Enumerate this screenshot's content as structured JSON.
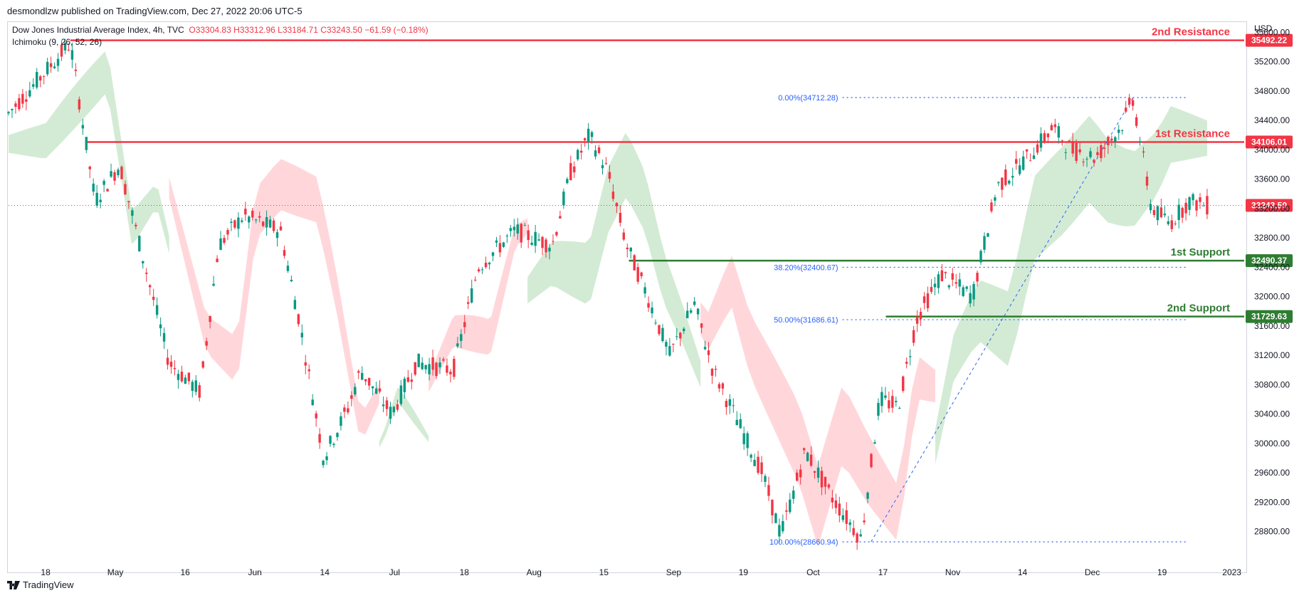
{
  "header": {
    "publisher": "desmondlzw published on TradingView.com, Dec 27, 2022 20:06 UTC-5",
    "symbol": "Dow Jones Industrial Average Index, 4h, TVC",
    "ohlc": "O33304.83  H33312.96  L33184.71  C33243.50  −61.59 (−0.18%)",
    "indicator": "Ichimoku (9, 26, 52, 26)"
  },
  "footer": {
    "brand": "TradingView"
  },
  "colors": {
    "up": "#089981",
    "down": "#f23645",
    "resistance": "#f23645",
    "support": "#2e7d32",
    "fib": "#2962ff",
    "cloud_green": "#c8e6c9",
    "cloud_red": "#ffcdd2"
  },
  "chart_data": {
    "type": "candlestick",
    "currency": "USD",
    "ylim": [
      28400,
      35750
    ],
    "y_ticks": [
      28800,
      29200,
      29600,
      30000,
      30400,
      30800,
      31200,
      31600,
      32000,
      32400,
      32800,
      33200,
      33600,
      34000,
      34400,
      34800,
      35200,
      35600
    ],
    "x_ticks": [
      "18",
      "May",
      "16",
      "Jun",
      "14",
      "Jul",
      "18",
      "Aug",
      "15",
      "Sep",
      "19",
      "Oct",
      "17",
      "Nov",
      "14",
      "Dec",
      "19",
      "2023"
    ],
    "last_price": 33243.5,
    "levels": [
      {
        "name": "2nd Resistance",
        "value": 35492.22,
        "label": "35492.22",
        "kind": "resistance",
        "from": 0.05
      },
      {
        "name": "1st Resistance",
        "value": 34106.01,
        "label": "34106.01",
        "kind": "resistance",
        "from": 0.062
      },
      {
        "name": "1st Support",
        "value": 32490.37,
        "label": "32490.37",
        "kind": "support",
        "from": 0.502
      },
      {
        "name": "2nd Support",
        "value": 31729.63,
        "label": "31729.63",
        "kind": "support",
        "from": 0.71
      }
    ],
    "last_price_label": "33243.50",
    "fibonacci": [
      {
        "label": "0.00%(34712.28)",
        "value": 34712.28
      },
      {
        "label": "38.20%(32400.67)",
        "value": 32400.67
      },
      {
        "label": "50.00%(31686.61)",
        "value": 31686.61
      },
      {
        "label": "100.00%(28660.94)",
        "value": 28660.94
      }
    ],
    "fib_anchor_low": {
      "t": 0.698,
      "value": 28660.94
    },
    "fib_anchor_high": {
      "t": 0.91,
      "value": 34712.28
    },
    "path": [
      [
        0.0,
        34500
      ],
      [
        0.05,
        35450
      ],
      [
        0.07,
        33300
      ],
      [
        0.09,
        33800
      ],
      [
        0.13,
        31100
      ],
      [
        0.155,
        30700
      ],
      [
        0.17,
        32700
      ],
      [
        0.19,
        33100
      ],
      [
        0.22,
        32900
      ],
      [
        0.235,
        31700
      ],
      [
        0.255,
        29800
      ],
      [
        0.275,
        30500
      ],
      [
        0.285,
        31000
      ],
      [
        0.31,
        30400
      ],
      [
        0.33,
        31100
      ],
      [
        0.36,
        31000
      ],
      [
        0.38,
        32400
      ],
      [
        0.41,
        32900
      ],
      [
        0.44,
        32700
      ],
      [
        0.455,
        33700
      ],
      [
        0.47,
        34200
      ],
      [
        0.485,
        33700
      ],
      [
        0.5,
        32700
      ],
      [
        0.515,
        32100
      ],
      [
        0.535,
        31200
      ],
      [
        0.555,
        31900
      ],
      [
        0.57,
        31000
      ],
      [
        0.59,
        30300
      ],
      [
        0.61,
        29600
      ],
      [
        0.625,
        28750
      ],
      [
        0.645,
        29900
      ],
      [
        0.665,
        29300
      ],
      [
        0.69,
        28700
      ],
      [
        0.705,
        30600
      ],
      [
        0.72,
        30500
      ],
      [
        0.735,
        31700
      ],
      [
        0.755,
        32300
      ],
      [
        0.78,
        32000
      ],
      [
        0.8,
        33500
      ],
      [
        0.825,
        33900
      ],
      [
        0.845,
        34300
      ],
      [
        0.86,
        34000
      ],
      [
        0.88,
        33900
      ],
      [
        0.9,
        34300
      ],
      [
        0.91,
        34700
      ],
      [
        0.925,
        33200
      ],
      [
        0.94,
        33000
      ],
      [
        0.955,
        33300
      ],
      [
        0.97,
        33243
      ]
    ]
  }
}
